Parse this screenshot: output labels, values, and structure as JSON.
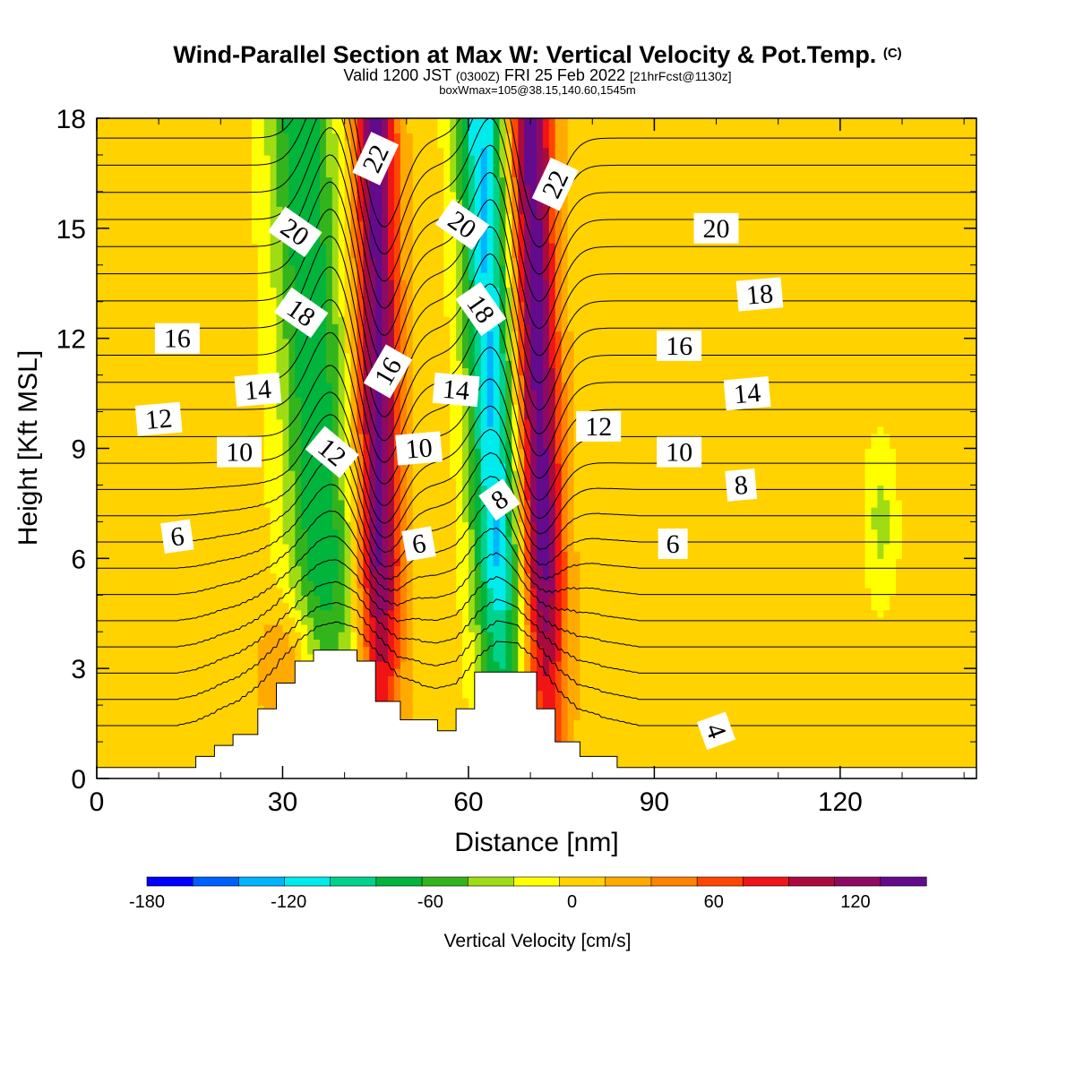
{
  "title": {
    "main": "Wind-Parallel Section at Max W: Vertical Velocity & Pot.Temp.",
    "mark": "(C)",
    "sub_prefix": "Valid 1200 JST",
    "sub_utc": "(0300Z)",
    "sub_main": "FRI 25 Feb 2022",
    "sub_fcst": "[21hrFcst@1130z]",
    "box": "boxWmax=105@38.15,140.60,1545m"
  },
  "chart_data": {
    "type": "heatmap",
    "xlabel": "Distance [nm]",
    "ylabel": "Height [Kft MSL]",
    "xlim": [
      0,
      142
    ],
    "ylim": [
      0,
      18
    ],
    "xticks": [
      0,
      30,
      60,
      90,
      120
    ],
    "yticks": [
      0,
      3,
      6,
      9,
      12,
      15,
      18
    ],
    "grid": false,
    "colorbar": {
      "title": "Vertical Velocity [cm/s]",
      "min": -180,
      "max": 150,
      "step": 20,
      "colors": [
        "#0000ff",
        "#0060ff",
        "#00b4ff",
        "#00ebeb",
        "#00d28c",
        "#00b43c",
        "#34b41c",
        "#a0dc14",
        "#ffff00",
        "#ffd200",
        "#ffaa00",
        "#ff8200",
        "#ff4600",
        "#f01414",
        "#aa0a3c",
        "#8c0a64",
        "#640a8c"
      ],
      "tick_values": [
        -180,
        -120,
        -60,
        0,
        60,
        120
      ],
      "tick_labels": [
        "-180",
        "-120",
        "-60",
        "0",
        "60",
        "120"
      ]
    },
    "velocity_features": [
      {
        "name": "downdraft-1",
        "x_low": 38,
        "x_high": 33,
        "half_width": 5.5,
        "peak": -85
      },
      {
        "name": "updraft-1",
        "x_low": 46,
        "x_high": 45,
        "half_width": 3.5,
        "peak": 140
      },
      {
        "name": "downdraft-2",
        "x_low": 66,
        "x_high": 62,
        "half_width": 4.0,
        "peak": -130
      },
      {
        "name": "updraft-2",
        "x_low": 73,
        "x_high": 70,
        "half_width": 3.5,
        "peak": 145
      },
      {
        "name": "downdraft-3",
        "x_low": 127,
        "x_high": 126,
        "half_width": 2.5,
        "peak": -35,
        "y_range": [
          4.5,
          9.5
        ]
      },
      {
        "name": "orange-lower-left",
        "x_low": 31,
        "x_high": 31,
        "half_width": 5,
        "peak": 40,
        "y_range": [
          1,
          5
        ]
      }
    ],
    "terrain": [
      [
        0,
        0.3
      ],
      [
        16,
        0.3
      ],
      [
        16,
        0.6
      ],
      [
        19,
        0.6
      ],
      [
        19,
        0.9
      ],
      [
        22,
        0.9
      ],
      [
        22,
        1.2
      ],
      [
        26,
        1.2
      ],
      [
        26,
        1.9
      ],
      [
        29,
        1.9
      ],
      [
        29,
        2.6
      ],
      [
        32,
        2.6
      ],
      [
        32,
        3.2
      ],
      [
        35,
        3.2
      ],
      [
        35,
        3.5
      ],
      [
        42,
        3.5
      ],
      [
        42,
        3.2
      ],
      [
        45,
        3.2
      ],
      [
        45,
        2.1
      ],
      [
        49,
        2.1
      ],
      [
        49,
        1.6
      ],
      [
        55,
        1.6
      ],
      [
        55,
        1.3
      ],
      [
        58,
        1.3
      ],
      [
        58,
        1.9
      ],
      [
        61,
        1.9
      ],
      [
        61,
        2.9
      ],
      [
        71,
        2.9
      ],
      [
        71,
        1.9
      ],
      [
        74,
        1.9
      ],
      [
        74,
        1.0
      ],
      [
        78,
        1.0
      ],
      [
        78,
        0.6
      ],
      [
        84,
        0.6
      ],
      [
        84,
        0.3
      ],
      [
        142,
        0.3
      ]
    ],
    "theta_levels": [
      2,
      3,
      4,
      5,
      6,
      7,
      8,
      9,
      10,
      11,
      12,
      13,
      14,
      15,
      16,
      17,
      18,
      19,
      20,
      21,
      22,
      23,
      24
    ],
    "theta_labels": [
      {
        "text": "6",
        "x": 13,
        "y": 6.6,
        "angle": -8
      },
      {
        "text": "10",
        "x": 23,
        "y": 8.9,
        "angle": 0
      },
      {
        "text": "12",
        "x": 10,
        "y": 9.8,
        "angle": -5
      },
      {
        "text": "14",
        "x": 26,
        "y": 10.6,
        "angle": -5
      },
      {
        "text": "16",
        "x": 13,
        "y": 12.0,
        "angle": 0
      },
      {
        "text": "18",
        "x": 33,
        "y": 12.7,
        "angle": 35
      },
      {
        "text": "20",
        "x": 32,
        "y": 14.9,
        "angle": 35
      },
      {
        "text": "12",
        "x": 38,
        "y": 8.9,
        "angle": 40
      },
      {
        "text": "16",
        "x": 47,
        "y": 11.1,
        "angle": -60
      },
      {
        "text": "22",
        "x": 45,
        "y": 16.9,
        "angle": -65
      },
      {
        "text": "6",
        "x": 52,
        "y": 6.4,
        "angle": -10
      },
      {
        "text": "10",
        "x": 52,
        "y": 9.0,
        "angle": -5
      },
      {
        "text": "14",
        "x": 58,
        "y": 10.6,
        "angle": 5
      },
      {
        "text": "18",
        "x": 62,
        "y": 12.8,
        "angle": 55
      },
      {
        "text": "20",
        "x": 59,
        "y": 15.1,
        "angle": 35
      },
      {
        "text": "8",
        "x": 65,
        "y": 7.6,
        "angle": -35
      },
      {
        "text": "22",
        "x": 74,
        "y": 16.2,
        "angle": -65
      },
      {
        "text": "12",
        "x": 81,
        "y": 9.6,
        "angle": 0
      },
      {
        "text": "6",
        "x": 93,
        "y": 6.4,
        "angle": 0
      },
      {
        "text": "10",
        "x": 94,
        "y": 8.9,
        "angle": 0
      },
      {
        "text": "16",
        "x": 94,
        "y": 11.8,
        "angle": 0
      },
      {
        "text": "20",
        "x": 100,
        "y": 15.0,
        "angle": 0
      },
      {
        "text": "8",
        "x": 104,
        "y": 8.0,
        "angle": -5
      },
      {
        "text": "14",
        "x": 105,
        "y": 10.5,
        "angle": -5
      },
      {
        "text": "18",
        "x": 107,
        "y": 13.2,
        "angle": -5
      },
      {
        "text": "4",
        "x": 100,
        "y": 1.3,
        "angle": 70
      }
    ]
  }
}
